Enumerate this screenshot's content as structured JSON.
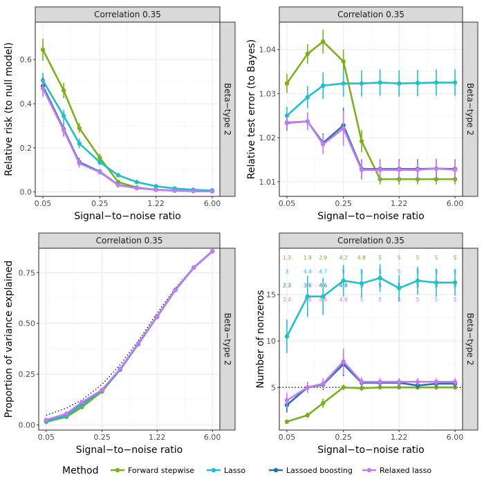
{
  "colors": {
    "Forward stepwise": "#7BAF1E",
    "Lasso": "#1FC0C8",
    "Lassoed boosting": "#2572A6",
    "Relaxed lasso": "#C07EF3",
    "strip_bg": "#D9D9D9",
    "grid_major": "#EBEBEB",
    "grid_minor": "#F4F4F4"
  },
  "legend": {
    "title": "Method",
    "entries": [
      "Forward stepwise",
      "Lasso",
      "Lassoed boosting",
      "Relaxed lasso"
    ]
  },
  "chart_data": [
    {
      "type": "line",
      "title": "Correlation 0.35",
      "facet_right": "Beta−type 2",
      "xlabel": "Signal−to−noise ratio",
      "ylabel": "Relative risk (to null model)",
      "x_scale": "log",
      "x": [
        0.05,
        0.09,
        0.14,
        0.25,
        0.42,
        0.71,
        1.22,
        2.07,
        3.52,
        6.0
      ],
      "xticks": [
        "0.05",
        "0.25",
        "1.22",
        "6.00"
      ],
      "ylim": [
        -0.02,
        0.77
      ],
      "yticks": [
        0.0,
        0.2,
        0.4,
        0.6
      ],
      "ytick_labels": [
        "0.0",
        "0.2",
        "0.4",
        "0.6"
      ],
      "series": [
        {
          "name": "Forward stepwise",
          "values": [
            0.645,
            0.46,
            0.29,
            0.155,
            0.045,
            0.02,
            0.01,
            0.007,
            0.004,
            0.003
          ],
          "err": [
            0.05,
            0.035,
            0.022,
            0.018,
            0.008,
            0.004,
            0.003,
            0.002,
            0.002,
            0.001
          ]
        },
        {
          "name": "Lasso",
          "values": [
            0.505,
            0.345,
            0.22,
            0.135,
            0.076,
            0.045,
            0.026,
            0.016,
            0.01,
            0.007
          ],
          "err": [
            0.035,
            0.028,
            0.022,
            0.014,
            0.006,
            0.004,
            0.003,
            0.002,
            0.002,
            0.001
          ]
        },
        {
          "name": "Lassoed boosting",
          "values": [
            0.48,
            0.285,
            0.135,
            0.092,
            0.032,
            0.018,
            0.01,
            0.006,
            0.004,
            0.003
          ],
          "err": [
            0.04,
            0.03,
            0.02,
            0.012,
            0.006,
            0.004,
            0.003,
            0.002,
            0.002,
            0.001
          ]
        },
        {
          "name": "Relaxed lasso",
          "values": [
            0.47,
            0.28,
            0.13,
            0.09,
            0.031,
            0.017,
            0.01,
            0.006,
            0.004,
            0.003
          ],
          "err": [
            0.04,
            0.03,
            0.02,
            0.012,
            0.006,
            0.004,
            0.003,
            0.002,
            0.002,
            0.001
          ]
        }
      ]
    },
    {
      "type": "line",
      "title": "Correlation 0.35",
      "facet_right": "Beta−type 2",
      "xlabel": "Signal−to−noise ratio",
      "ylabel": "Relative test error (to Bayes)",
      "x_scale": "log",
      "x": [
        0.05,
        0.09,
        0.14,
        0.25,
        0.42,
        0.71,
        1.22,
        2.07,
        3.52,
        6.0
      ],
      "xticks": [
        "0.05",
        "0.25",
        "1.22",
        "6.00"
      ],
      "ylim": [
        1.0067,
        1.0462
      ],
      "yticks": [
        1.01,
        1.02,
        1.03,
        1.04
      ],
      "ytick_labels": [
        "1.01",
        "1.02",
        "1.03",
        "1.04"
      ],
      "series": [
        {
          "name": "Forward stepwise",
          "values": [
            1.0323,
            1.039,
            1.0418,
            1.0373,
            1.0192,
            1.0106,
            1.0106,
            1.0106,
            1.0106,
            1.0106
          ],
          "err": [
            0.0022,
            0.0022,
            0.0027,
            0.0027,
            0.0025,
            0.0012,
            0.0012,
            0.0012,
            0.0012,
            0.0012
          ]
        },
        {
          "name": "Lasso",
          "values": [
            1.025,
            1.0292,
            1.0318,
            1.0323,
            1.0323,
            1.0325,
            1.0323,
            1.0324,
            1.0325,
            1.0325
          ],
          "err": [
            0.002,
            0.0025,
            0.003,
            0.003,
            0.003,
            0.003,
            0.003,
            0.003,
            0.003,
            0.003
          ]
        },
        {
          "name": "Lassoed boosting",
          "values": [
            1.0234,
            1.0237,
            1.0188,
            1.0228,
            1.0129,
            1.0129,
            1.0129,
            1.0129,
            1.013,
            1.0129
          ],
          "err": [
            0.0018,
            0.002,
            0.0022,
            0.004,
            0.0022,
            0.0022,
            0.0022,
            0.0022,
            0.0022,
            0.0022
          ]
        },
        {
          "name": "Relaxed lasso",
          "values": [
            1.0233,
            1.0237,
            1.0185,
            1.0221,
            1.0127,
            1.0127,
            1.0127,
            1.0127,
            1.013,
            1.0127
          ],
          "err": [
            0.0018,
            0.002,
            0.0022,
            0.004,
            0.0022,
            0.0022,
            0.0022,
            0.0022,
            0.0022,
            0.0022
          ]
        }
      ]
    },
    {
      "type": "line",
      "title": "Correlation 0.35",
      "facet_right": "Beta−type 2",
      "xlabel": "Signal−to−noise ratio",
      "ylabel": "Proportion of variance explained",
      "x_scale": "log",
      "x": [
        0.05,
        0.09,
        0.14,
        0.25,
        0.42,
        0.71,
        1.22,
        2.07,
        3.52,
        6.0
      ],
      "xticks": [
        "0.05",
        "0.25",
        "1.22",
        "6.00"
      ],
      "ylim": [
        -0.025,
        0.87
      ],
      "yticks": [
        0.0,
        0.25,
        0.5,
        0.75
      ],
      "ytick_labels": [
        "0.00",
        "0.25",
        "0.50",
        "0.75"
      ],
      "reference_line": {
        "style": "dotted",
        "values": [
          0.048,
          0.083,
          0.123,
          0.2,
          0.296,
          0.415,
          0.55,
          0.674,
          0.779,
          0.857
        ]
      },
      "series": [
        {
          "name": "Forward stepwise",
          "values": [
            0.015,
            0.04,
            0.088,
            0.165,
            0.272,
            0.4,
            0.535,
            0.665,
            0.775,
            0.855
          ]
        },
        {
          "name": "Lasso",
          "values": [
            0.018,
            0.045,
            0.1,
            0.17,
            0.272,
            0.398,
            0.532,
            0.665,
            0.775,
            0.855
          ]
        },
        {
          "name": "Lassoed boosting",
          "values": [
            0.024,
            0.055,
            0.11,
            0.172,
            0.275,
            0.401,
            0.533,
            0.665,
            0.775,
            0.855
          ]
        },
        {
          "name": "Relaxed lasso",
          "values": [
            0.025,
            0.056,
            0.112,
            0.173,
            0.276,
            0.402,
            0.534,
            0.666,
            0.776,
            0.856
          ]
        }
      ]
    },
    {
      "type": "line",
      "title": "Correlation 0.35",
      "facet_right": "Beta−type 2",
      "xlabel": "Signal−to−noise ratio",
      "ylabel": "Number of nonzeros",
      "x_scale": "log",
      "x": [
        0.05,
        0.09,
        0.14,
        0.25,
        0.42,
        0.71,
        1.22,
        2.07,
        3.52,
        6.0
      ],
      "xticks": [
        "0.05",
        "0.25",
        "1.22",
        "6.00"
      ],
      "ylim": [
        0.4,
        20.0
      ],
      "yticks": [
        5,
        10,
        15
      ],
      "ytick_labels": [
        "5",
        "10",
        "15"
      ],
      "reference_line": {
        "style": "dotted",
        "value": 5
      },
      "annotation_rows": [
        {
          "name": "Forward stepwise",
          "y": 19.0,
          "labels": [
            "1.3",
            "1.9",
            "2.9",
            "4.2",
            "4.8",
            "5",
            "5",
            "5",
            "5",
            "5"
          ]
        },
        {
          "name": "Lasso",
          "y": 17.5,
          "labels": [
            "3",
            "4.4",
            "4.7",
            "5",
            "5",
            "5",
            "5",
            "5",
            "5",
            "5"
          ]
        },
        {
          "name": "Lassoed boosting",
          "y": 16.0,
          "labels": [
            "2.3",
            "3.6",
            "4.6",
            "4.8",
            "5",
            "5",
            "5",
            "5",
            "5",
            "5"
          ]
        },
        {
          "name": "Relaxed lasso",
          "y": 14.5,
          "labels": [
            "2.4",
            "3.6",
            "4.6",
            "4.9",
            "5",
            "5",
            "5",
            "5",
            "5",
            "5"
          ]
        }
      ],
      "series": [
        {
          "name": "Forward stepwise",
          "values": [
            1.3,
            2.0,
            3.3,
            5.0,
            4.9,
            5.0,
            5.0,
            5.0,
            5.0,
            5.0
          ],
          "err": [
            0.2,
            0.3,
            0.5,
            0.3,
            0.15,
            0.1,
            0.1,
            0.1,
            0.05,
            0.05
          ]
        },
        {
          "name": "Lasso",
          "values": [
            10.5,
            14.8,
            14.8,
            16.5,
            16.2,
            16.8,
            15.7,
            16.5,
            16.3,
            16.3
          ],
          "err": [
            1.8,
            2.2,
            2.0,
            1.7,
            1.5,
            1.5,
            1.4,
            1.5,
            1.5,
            1.4
          ]
        },
        {
          "name": "Lassoed boosting",
          "values": [
            3.1,
            5.0,
            5.3,
            7.5,
            5.5,
            5.5,
            5.5,
            5.2,
            5.4,
            5.4
          ],
          "err": [
            0.8,
            0.6,
            0.6,
            1.3,
            0.5,
            0.4,
            0.4,
            0.4,
            0.4,
            0.4
          ]
        },
        {
          "name": "Relaxed lasso",
          "values": [
            3.6,
            5.0,
            5.4,
            7.8,
            5.6,
            5.6,
            5.6,
            5.6,
            5.6,
            5.6
          ],
          "err": [
            0.8,
            0.6,
            0.6,
            1.4,
            0.5,
            0.4,
            0.4,
            0.4,
            0.4,
            0.4
          ]
        }
      ]
    }
  ]
}
